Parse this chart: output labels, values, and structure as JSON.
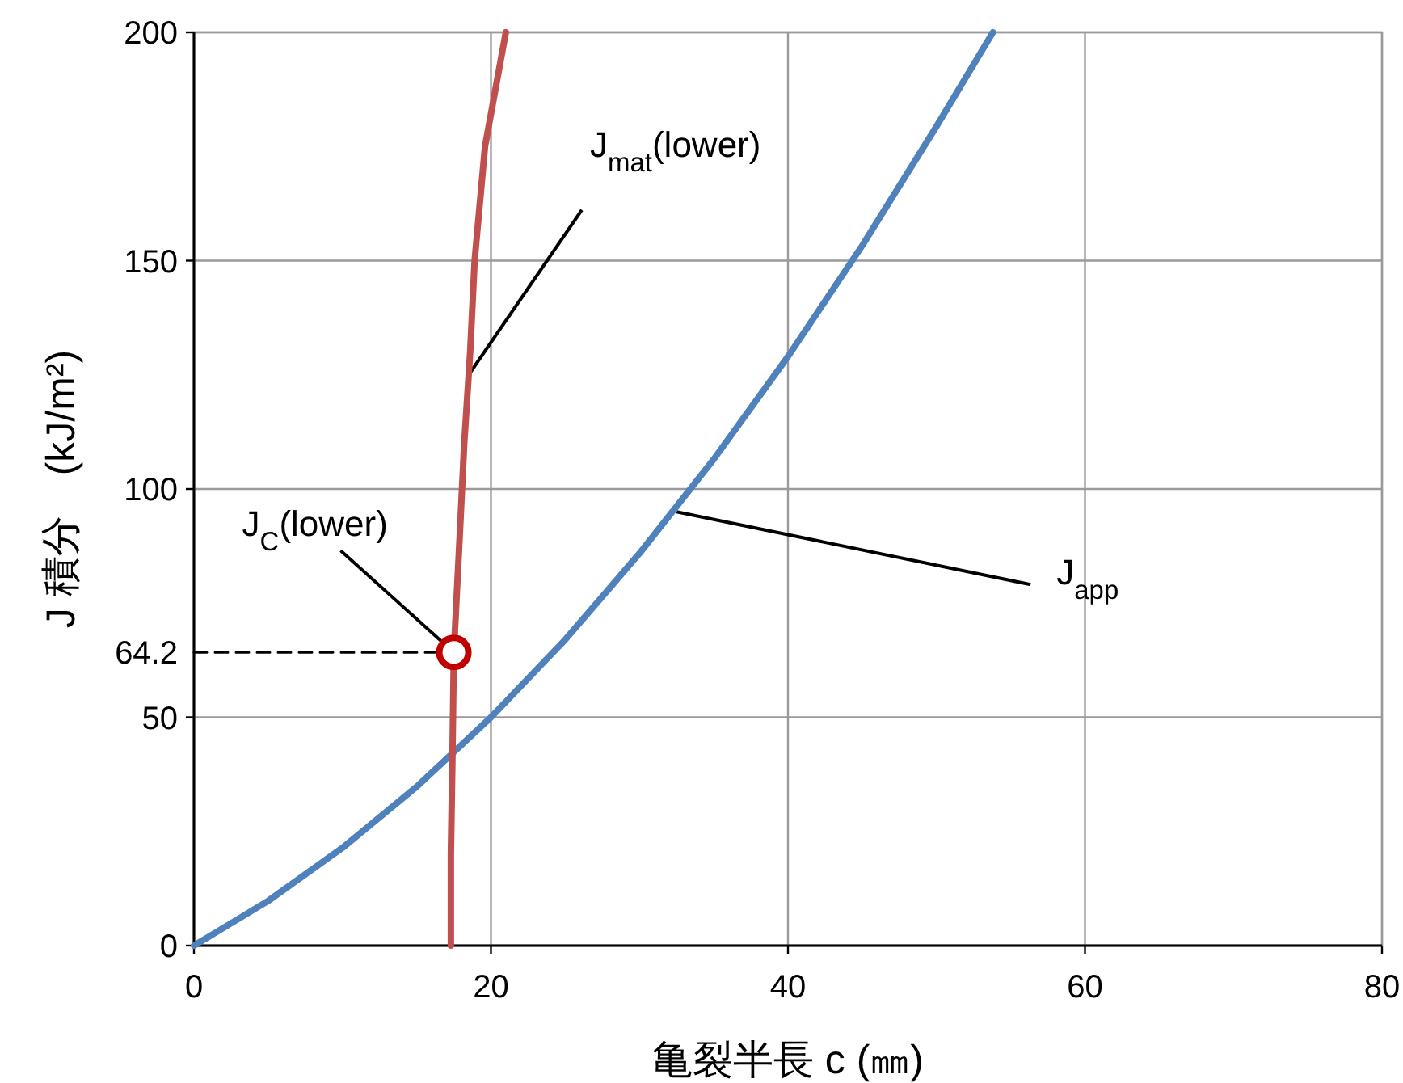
{
  "chart_data": {
    "type": "line",
    "xlabel": "亀裂半長 c (㎜)",
    "ylabel": "J 積分　(kJ/m²)",
    "xlim": [
      0,
      80
    ],
    "xticks": [
      0,
      20,
      40,
      60,
      80
    ],
    "ylim": [
      0,
      200
    ],
    "yticks": [
      0,
      50,
      {
        "value": 64.2,
        "label": "64.2"
      },
      100,
      150,
      200
    ],
    "grid": true,
    "series": [
      {
        "color": "#4f81bd",
        "x": [
          0,
          5,
          10,
          15,
          20,
          25,
          30,
          35,
          40,
          45,
          50,
          53.8
        ],
        "values": [
          0,
          9.8,
          21.4,
          34.8,
          50,
          67,
          85.9,
          106.5,
          129,
          153.3,
          179.4,
          200
        ]
      },
      {
        "color": "#c0504d",
        "x": [
          17.3,
          17.3,
          17.4,
          17.5,
          17.9,
          18.2,
          18.6,
          18.9,
          19.6,
          21
        ],
        "values": [
          0,
          20,
          40,
          64.2,
          90,
          110,
          130,
          150,
          175,
          200
        ]
      },
      {
        "type": "line",
        "color": "#000000",
        "line_style": "dashed",
        "x": [
          0,
          17.5
        ],
        "values": [
          64.2,
          64.2
        ]
      },
      {
        "type": "scatter",
        "color": "#c00000",
        "marker": "circle",
        "x": [
          17.5
        ],
        "values": [
          64.2
        ]
      }
    ],
    "annotations": [
      {
        "text": "J$_{mat}$(lower)",
        "x": 18.5,
        "y": 125
      },
      {
        "text": "J$_{app}$",
        "x": 32.5,
        "y": 95
      },
      {
        "text": "J$_{C}$(lower)",
        "x": 17.5,
        "y": 64.2
      }
    ]
  }
}
